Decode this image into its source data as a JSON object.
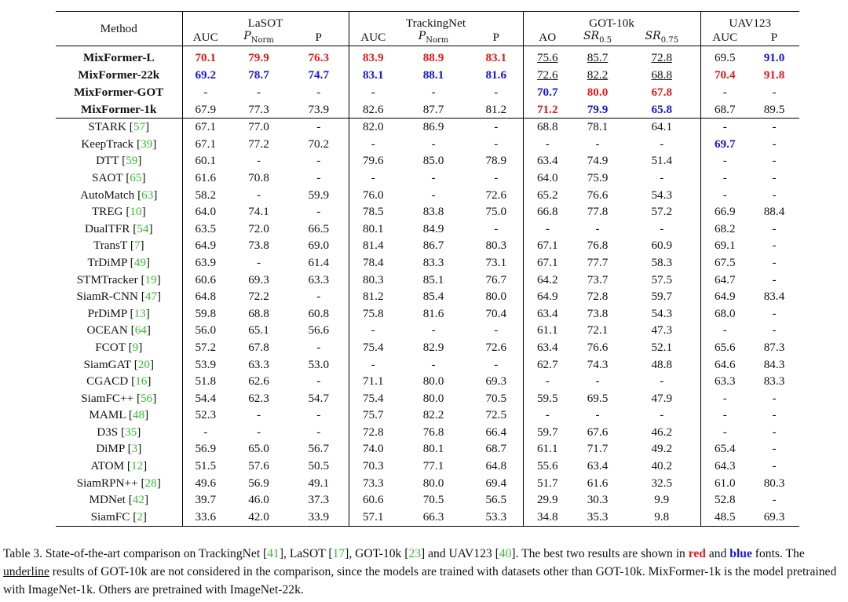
{
  "header": {
    "method": "Method",
    "groups": [
      "LaSOT",
      "TrackingNet",
      "GOT-10k",
      "UAV123"
    ],
    "subcols": {
      "lasot": [
        "AUC",
        "P",
        "Norm",
        "P"
      ],
      "trackingnet": [
        "AUC",
        "P",
        "Norm",
        "P"
      ],
      "got": [
        "AO",
        "SR",
        "0.5",
        "SR",
        "0.75"
      ],
      "uav": [
        "AUC",
        "P"
      ]
    }
  },
  "mixformer_rows": [
    {
      "name": "MixFormer-L",
      "v": [
        "70.1",
        "79.9",
        "76.3",
        "83.9",
        "88.9",
        "83.1",
        "75.6",
        "85.7",
        "72.8",
        "69.5",
        "91.0"
      ],
      "s": [
        "red",
        "red",
        "red",
        "red",
        "red",
        "red",
        "ul",
        "ul",
        "ul",
        "",
        "blue"
      ]
    },
    {
      "name": "MixFormer-22k",
      "v": [
        "69.2",
        "78.7",
        "74.7",
        "83.1",
        "88.1",
        "81.6",
        "72.6",
        "82.2",
        "68.8",
        "70.4",
        "91.8"
      ],
      "s": [
        "blue",
        "blue",
        "blue",
        "blue",
        "blue",
        "blue",
        "ul",
        "ul",
        "ul",
        "red",
        "red"
      ]
    },
    {
      "name": "MixFormer-GOT",
      "v": [
        "-",
        "-",
        "-",
        "-",
        "-",
        "-",
        "70.7",
        "80.0",
        "67.8",
        "-",
        "-"
      ],
      "s": [
        "",
        "",
        "",
        "",
        "",
        "",
        "blue",
        "red",
        "red",
        "",
        ""
      ]
    },
    {
      "name": "MixFormer-1k",
      "v": [
        "67.9",
        "77.3",
        "73.9",
        "82.6",
        "87.7",
        "81.2",
        "71.2",
        "79.9",
        "65.8",
        "68.7",
        "89.5"
      ],
      "s": [
        "",
        "",
        "",
        "",
        "",
        "",
        "red",
        "blue",
        "blue",
        "",
        ""
      ]
    }
  ],
  "other_rows": [
    {
      "name": "STARK",
      "ref": "57",
      "v": [
        "67.1",
        "77.0",
        "-",
        "82.0",
        "86.9",
        "-",
        "68.8",
        "78.1",
        "64.1",
        "-",
        "-"
      ],
      "s": []
    },
    {
      "name": "KeepTrack",
      "ref": "39",
      "v": [
        "67.1",
        "77.2",
        "70.2",
        "-",
        "-",
        "-",
        "-",
        "-",
        "-",
        "69.7",
        "-"
      ],
      "s": [
        "",
        "",
        "",
        "",
        "",
        "",
        "",
        "",
        "",
        "blue",
        ""
      ]
    },
    {
      "name": "DTT",
      "ref": "59",
      "v": [
        "60.1",
        "-",
        "-",
        "79.6",
        "85.0",
        "78.9",
        "63.4",
        "74.9",
        "51.4",
        "-",
        "-"
      ],
      "s": []
    },
    {
      "name": "SAOT",
      "ref": "65",
      "v": [
        "61.6",
        "70.8",
        "-",
        "-",
        "-",
        "-",
        "64.0",
        "75.9",
        "-",
        "-",
        "-"
      ],
      "s": []
    },
    {
      "name": "AutoMatch",
      "ref": "63",
      "v": [
        "58.2",
        "-",
        "59.9",
        "76.0",
        "-",
        "72.6",
        "65.2",
        "76.6",
        "54.3",
        "-",
        "-"
      ],
      "s": []
    },
    {
      "name": "TREG",
      "ref": "10",
      "v": [
        "64.0",
        "74.1",
        "-",
        "78.5",
        "83.8",
        "75.0",
        "66.8",
        "77.8",
        "57.2",
        "66.9",
        "88.4"
      ],
      "s": []
    },
    {
      "name": "DualTFR",
      "ref": "54",
      "v": [
        "63.5",
        "72.0",
        "66.5",
        "80.1",
        "84.9",
        "-",
        "-",
        "-",
        "-",
        "68.2",
        "-"
      ],
      "s": []
    },
    {
      "name": "TransT",
      "ref": "7",
      "v": [
        "64.9",
        "73.8",
        "69.0",
        "81.4",
        "86.7",
        "80.3",
        "67.1",
        "76.8",
        "60.9",
        "69.1",
        "-"
      ],
      "s": []
    },
    {
      "name": "TrDiMP",
      "ref": "49",
      "v": [
        "63.9",
        "-",
        "61.4",
        "78.4",
        "83.3",
        "73.1",
        "67.1",
        "77.7",
        "58.3",
        "67.5",
        "-"
      ],
      "s": []
    },
    {
      "name": "STMTracker",
      "ref": "19",
      "v": [
        "60.6",
        "69.3",
        "63.3",
        "80.3",
        "85.1",
        "76.7",
        "64.2",
        "73.7",
        "57.5",
        "64.7",
        "-"
      ],
      "s": []
    },
    {
      "name": "SiamR-CNN",
      "ref": "47",
      "v": [
        "64.8",
        "72.2",
        "-",
        "81.2",
        "85.4",
        "80.0",
        "64.9",
        "72.8",
        "59.7",
        "64.9",
        "83.4"
      ],
      "s": []
    },
    {
      "name": "PrDiMP",
      "ref": "13",
      "v": [
        "59.8",
        "68.8",
        "60.8",
        "75.8",
        "81.6",
        "70.4",
        "63.4",
        "73.8",
        "54.3",
        "68.0",
        "-"
      ],
      "s": []
    },
    {
      "name": "OCEAN",
      "ref": "64",
      "v": [
        "56.0",
        "65.1",
        "56.6",
        "-",
        "-",
        "-",
        "61.1",
        "72.1",
        "47.3",
        "-",
        "-"
      ],
      "s": []
    },
    {
      "name": "FCOT",
      "ref": "9",
      "v": [
        "57.2",
        "67.8",
        "-",
        "75.4",
        "82.9",
        "72.6",
        "63.4",
        "76.6",
        "52.1",
        "65.6",
        "87.3"
      ],
      "s": []
    },
    {
      "name": "SiamGAT",
      "ref": "20",
      "v": [
        "53.9",
        "63.3",
        "53.0",
        "-",
        "-",
        "-",
        "62.7",
        "74.3",
        "48.8",
        "64.6",
        "84.3"
      ],
      "s": []
    },
    {
      "name": "CGACD",
      "ref": "16",
      "v": [
        "51.8",
        "62.6",
        "-",
        "71.1",
        "80.0",
        "69.3",
        "-",
        "-",
        "-",
        "63.3",
        "83.3"
      ],
      "s": []
    },
    {
      "name": "SiamFC++",
      "ref": "56",
      "v": [
        "54.4",
        "62.3",
        "54.7",
        "75.4",
        "80.0",
        "70.5",
        "59.5",
        "69.5",
        "47.9",
        "-",
        "-"
      ],
      "s": []
    },
    {
      "name": "MAML",
      "ref": "48",
      "v": [
        "52.3",
        "-",
        "-",
        "75.7",
        "82.2",
        "72.5",
        "-",
        "-",
        "-",
        "-",
        "-"
      ],
      "s": []
    },
    {
      "name": "D3S",
      "ref": "35",
      "v": [
        "-",
        "-",
        "-",
        "72.8",
        "76.8",
        "66.4",
        "59.7",
        "67.6",
        "46.2",
        "-",
        "-"
      ],
      "s": []
    },
    {
      "name": "DiMP",
      "ref": "3",
      "v": [
        "56.9",
        "65.0",
        "56.7",
        "74.0",
        "80.1",
        "68.7",
        "61.1",
        "71.7",
        "49.2",
        "65.4",
        "-"
      ],
      "s": []
    },
    {
      "name": "ATOM",
      "ref": "12",
      "v": [
        "51.5",
        "57.6",
        "50.5",
        "70.3",
        "77.1",
        "64.8",
        "55.6",
        "63.4",
        "40.2",
        "64.3",
        "-"
      ],
      "s": []
    },
    {
      "name": "SiamRPN++",
      "ref": "28",
      "v": [
        "49.6",
        "56.9",
        "49.1",
        "73.3",
        "80.0",
        "69.4",
        "51.7",
        "61.6",
        "32.5",
        "61.0",
        "80.3"
      ],
      "s": []
    },
    {
      "name": "MDNet",
      "ref": "42",
      "v": [
        "39.7",
        "46.0",
        "37.3",
        "60.6",
        "70.5",
        "56.5",
        "29.9",
        "30.3",
        "9.9",
        "52.8",
        "-"
      ],
      "s": []
    },
    {
      "name": "SiamFC",
      "ref": "2",
      "v": [
        "33.6",
        "42.0",
        "33.9",
        "57.1",
        "66.3",
        "53.3",
        "34.8",
        "35.3",
        "9.8",
        "48.5",
        "69.3"
      ],
      "s": []
    }
  ],
  "caption": {
    "p1": "Table 3. State-of-the-art comparison on TrackingNet [",
    "r1": "41",
    "p2": "], LaSOT [",
    "r2": "17",
    "p3": "], GOT-10k [",
    "r3": "23",
    "p4": "] and UAV123 [",
    "r4": "40",
    "p5": "]. The best two results are shown in ",
    "red_word": "red",
    "p6": " and ",
    "blue_word": "blue",
    "p7": " fonts. The ",
    "underline_word": "underline",
    "p8": " results of GOT-10k are not considered in the comparison, since the models are trained with datasets other than GOT-10k. MixFormer-1k is the model pretrained with ImageNet-1k. Others are pretrained with ImageNet-22k.",
    "colors": {
      "red": "#e0191c",
      "blue": "#1616d8",
      "cite": "#2fbf2f"
    }
  }
}
